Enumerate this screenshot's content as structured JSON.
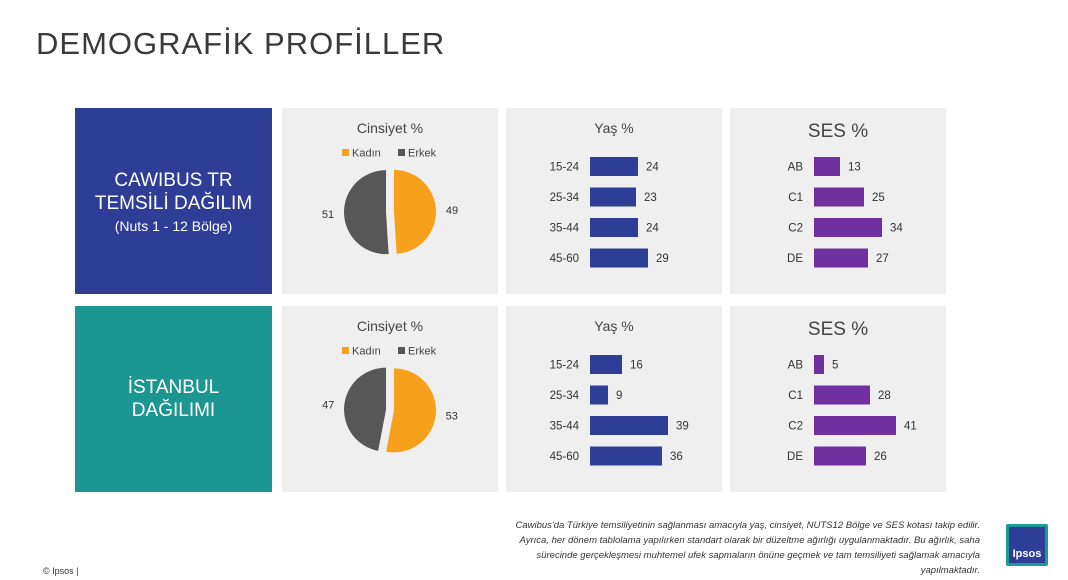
{
  "page_title": "DEMOGRAFİK PROFİLLER",
  "rows": [
    {
      "label_line1": "CAWIBUS TR",
      "label_line2": "TEMSİLİ DAĞILIM",
      "label_line3": "(Nuts 1 - 12 Bölge)"
    },
    {
      "label_line1": "İSTANBUL",
      "label_line2": "DAĞILIMI",
      "label_line3": ""
    }
  ],
  "colors": {
    "female": "#f7a01c",
    "male": "#575757",
    "age_bar": "#2e3d96",
    "ses_bar": "#7030a0",
    "row1_box": "#2e3d96",
    "row2_box": "#1b9692",
    "panel_bg": "#efefef"
  },
  "footnote": {
    "line1": "Cawibus'da Türkiye temsiliyetinin sağlanması amacıyla yaş, cinsiyet, NUTS12 Bölge ve SES kotası takip edilir.",
    "line2": "Ayrıca, her dönem tablolama yapılırken standart olarak bir düzeltme ağırlığı uygulanmaktadır. Bu ağırlık, saha",
    "line3": "sürecinde gerçekleşmesi muhtemel ufek sapmaların önüne geçmek ve tam temsiliyeti sağlamak amacıyla",
    "line4": "yapılmaktadır."
  },
  "copyright": "© Ipsos |",
  "logo_text": "Ipsos",
  "chart_data": [
    {
      "type": "pie",
      "title": "Cinsiyet %",
      "categories": [
        "Kadın",
        "Erkek"
      ],
      "values": [
        49,
        51
      ],
      "legend": "top"
    },
    {
      "type": "bar",
      "orientation": "horizontal",
      "title": "Yaş %",
      "categories": [
        "15-24",
        "25-34",
        "35-44",
        "45-60"
      ],
      "values": [
        24,
        23,
        24,
        29
      ],
      "bar_color": "#2e3d96"
    },
    {
      "type": "bar",
      "orientation": "horizontal",
      "title": "SES %",
      "categories": [
        "AB",
        "C1",
        "C2",
        "DE"
      ],
      "values": [
        13,
        25,
        34,
        27
      ],
      "bar_color": "#7030a0"
    },
    {
      "type": "pie",
      "title": "Cinsiyet %",
      "categories": [
        "Kadın",
        "Erkek"
      ],
      "values": [
        53,
        47
      ],
      "legend": "top"
    },
    {
      "type": "bar",
      "orientation": "horizontal",
      "title": "Yaş %",
      "categories": [
        "15-24",
        "25-34",
        "35-44",
        "45-60"
      ],
      "values": [
        16,
        9,
        39,
        36
      ],
      "bar_color": "#2e3d96"
    },
    {
      "type": "bar",
      "orientation": "horizontal",
      "title": "SES %",
      "categories": [
        "AB",
        "C1",
        "C2",
        "DE"
      ],
      "values": [
        5,
        28,
        41,
        26
      ],
      "bar_color": "#7030a0"
    }
  ]
}
